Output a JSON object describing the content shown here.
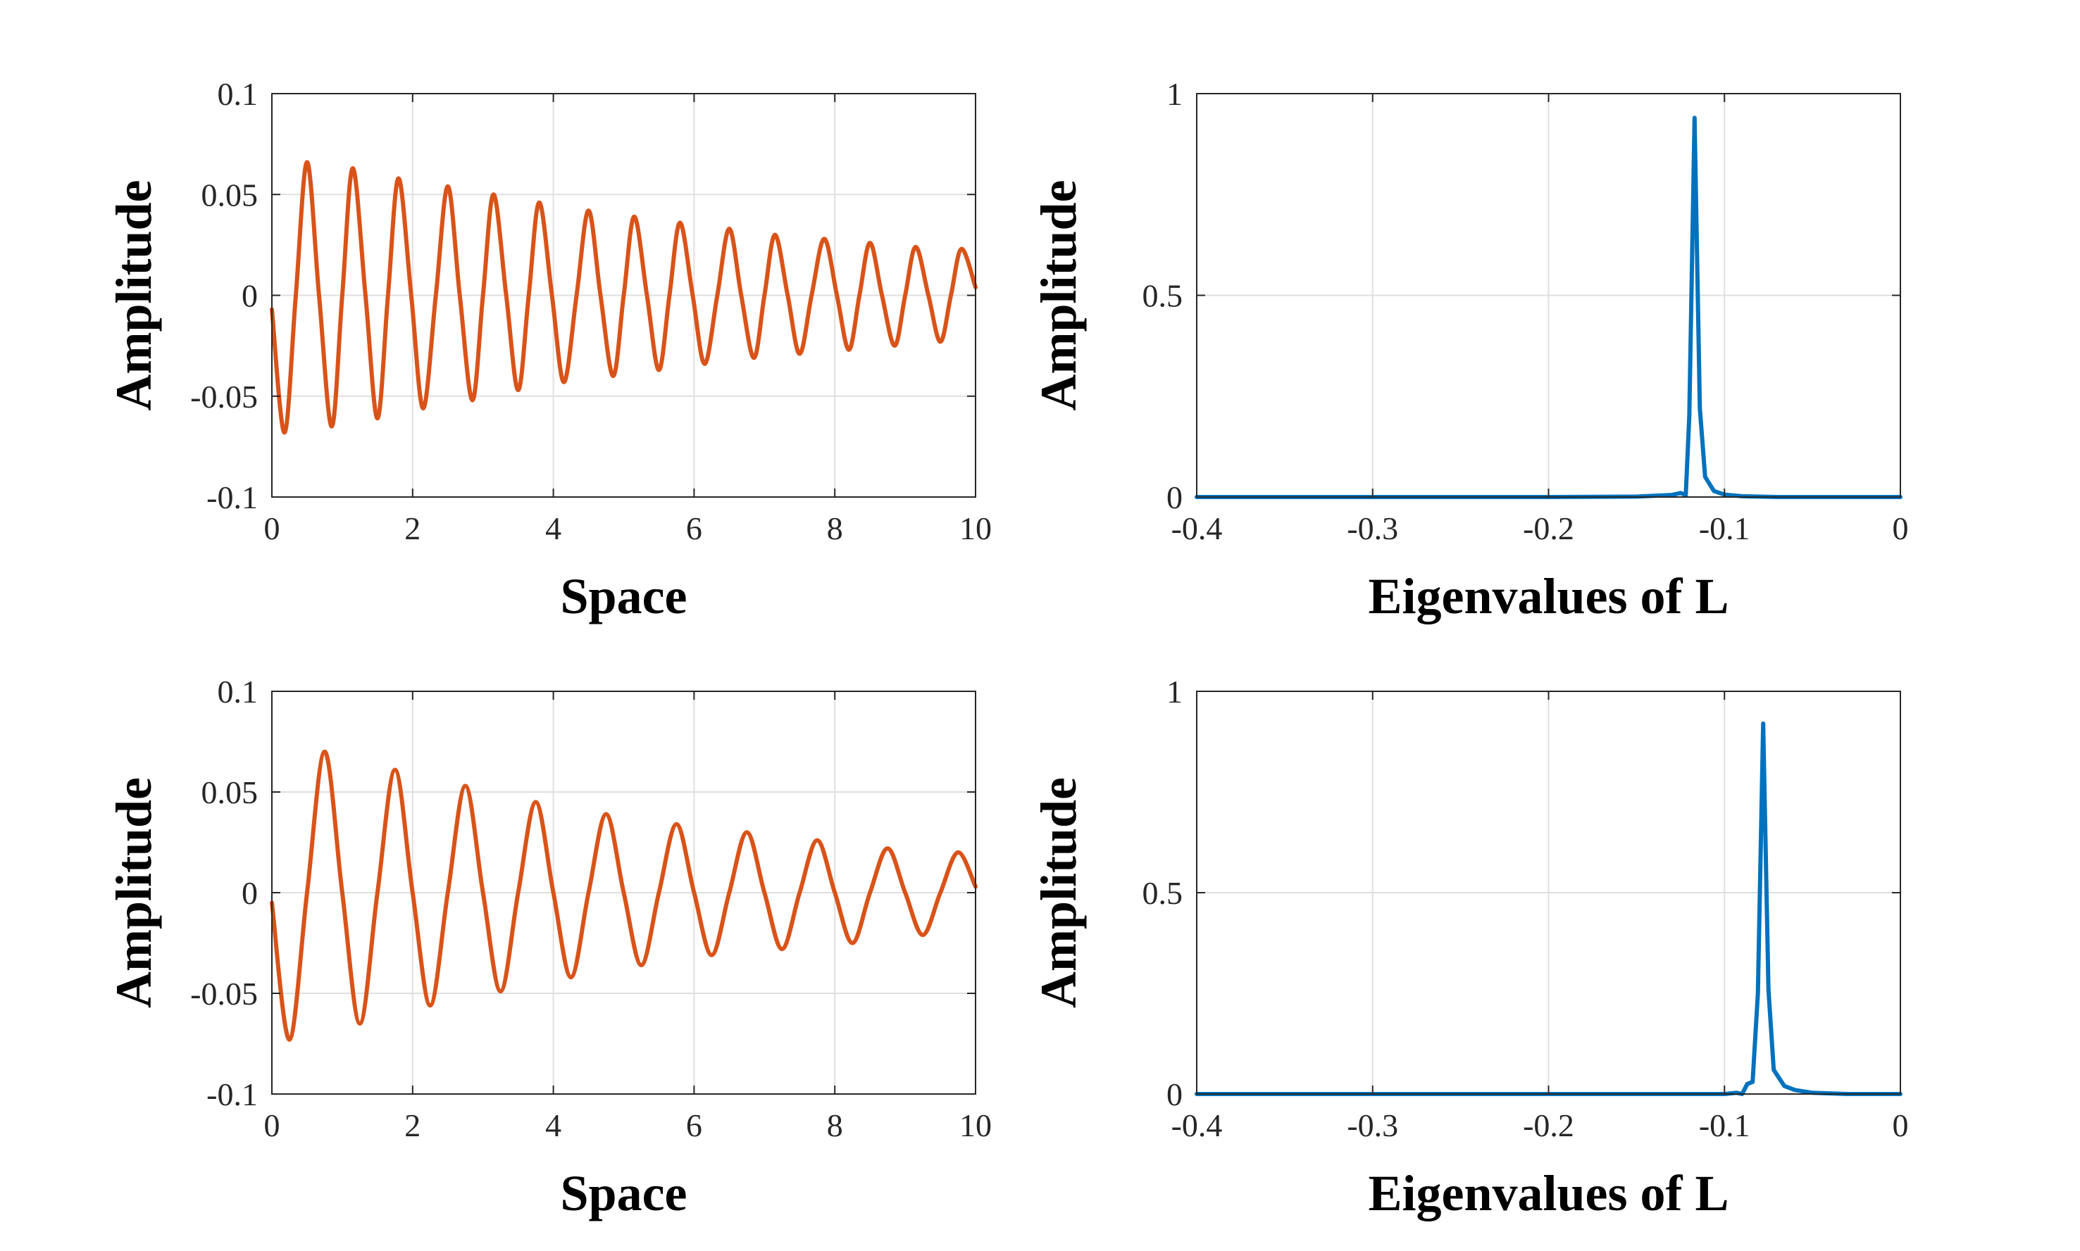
{
  "chart_data": [
    {
      "type": "line",
      "smooth": true,
      "grid": true,
      "color": "#d95319",
      "xlabel": "Space",
      "ylabel": "Amplitude",
      "xlim": [
        0,
        10
      ],
      "ylim": [
        -0.1,
        0.1
      ],
      "xticks": [
        0,
        2,
        4,
        6,
        8,
        10
      ],
      "yticks": [
        -0.1,
        -0.05,
        0,
        0.05,
        0.1
      ],
      "x": [
        0,
        0.18,
        0.34,
        0.5,
        0.67,
        0.85,
        1.0,
        1.15,
        1.33,
        1.5,
        1.65,
        1.8,
        1.98,
        2.15,
        2.33,
        2.5,
        2.67,
        2.85,
        3.0,
        3.15,
        3.33,
        3.5,
        3.65,
        3.8,
        3.98,
        4.15,
        4.33,
        4.5,
        4.67,
        4.85,
        5.0,
        5.15,
        5.33,
        5.5,
        5.65,
        5.8,
        5.98,
        6.15,
        6.33,
        6.5,
        6.67,
        6.85,
        7.0,
        7.15,
        7.33,
        7.5,
        7.67,
        7.85,
        8.03,
        8.2,
        8.35,
        8.5,
        8.67,
        8.85,
        9.0,
        9.15,
        9.33,
        9.5,
        9.65,
        9.8,
        10
      ],
      "values": [
        -0.007,
        -0.068,
        0,
        0.066,
        0,
        -0.065,
        0,
        0.063,
        0,
        -0.061,
        0,
        0.058,
        0,
        -0.056,
        0,
        0.054,
        0,
        -0.052,
        0,
        0.05,
        0,
        -0.047,
        0,
        0.046,
        0,
        -0.043,
        0,
        0.042,
        0,
        -0.04,
        0,
        0.039,
        0,
        -0.037,
        0,
        0.036,
        0,
        -0.034,
        0,
        0.033,
        0,
        -0.031,
        0,
        0.03,
        0,
        -0.029,
        0,
        0.028,
        0,
        -0.027,
        0,
        0.026,
        0,
        -0.025,
        0,
        0.024,
        0,
        -0.023,
        0,
        0.023,
        0.004
      ]
    },
    {
      "type": "line",
      "smooth": false,
      "grid": true,
      "color": "#0072bd",
      "xlabel": "Eigenvalues of L",
      "ylabel": "Amplitude",
      "xlim": [
        -0.4,
        0
      ],
      "ylim": [
        0,
        1
      ],
      "xticks": [
        -0.4,
        -0.3,
        -0.2,
        -0.1,
        0
      ],
      "yticks": [
        0,
        0.5,
        1
      ],
      "x": [
        -0.4,
        -0.2,
        -0.15,
        -0.13,
        -0.125,
        -0.122,
        -0.12,
        -0.117,
        -0.114,
        -0.111,
        -0.106,
        -0.1,
        -0.09,
        -0.07,
        0
      ],
      "values": [
        0,
        0,
        0.001,
        0.005,
        0.01,
        0.005,
        0.2,
        0.94,
        0.22,
        0.05,
        0.015,
        0.006,
        0.002,
        0,
        0
      ]
    },
    {
      "type": "line",
      "smooth": true,
      "grid": true,
      "color": "#d95319",
      "xlabel": "Space",
      "ylabel": "Amplitude",
      "xlim": [
        0,
        10
      ],
      "ylim": [
        -0.1,
        0.1
      ],
      "xticks": [
        0,
        2,
        4,
        6,
        8,
        10
      ],
      "yticks": [
        -0.1,
        -0.05,
        0,
        0.05,
        0.1
      ],
      "x": [
        0,
        0.25,
        0.5,
        0.75,
        1,
        1.25,
        1.5,
        1.75,
        2,
        2.25,
        2.5,
        2.75,
        3,
        3.25,
        3.5,
        3.75,
        4,
        4.25,
        4.5,
        4.75,
        5,
        5.25,
        5.5,
        5.75,
        6,
        6.25,
        6.5,
        6.75,
        7,
        7.25,
        7.5,
        7.75,
        8,
        8.25,
        8.5,
        8.75,
        9,
        9.25,
        9.5,
        9.75,
        10
      ],
      "values": [
        -0.005,
        -0.073,
        0,
        0.07,
        0,
        -0.065,
        0,
        0.061,
        0,
        -0.056,
        0,
        0.053,
        0,
        -0.049,
        0,
        0.045,
        0,
        -0.042,
        0,
        0.039,
        0,
        -0.036,
        0,
        0.034,
        0,
        -0.031,
        0,
        0.03,
        0,
        -0.028,
        0,
        0.026,
        0,
        -0.025,
        0,
        0.022,
        0,
        -0.021,
        0,
        0.02,
        0.003
      ]
    },
    {
      "type": "line",
      "smooth": false,
      "grid": true,
      "color": "#0072bd",
      "xlabel": "Eigenvalues of L",
      "ylabel": "Amplitude",
      "xlim": [
        -0.4,
        0
      ],
      "ylim": [
        0,
        1
      ],
      "xticks": [
        -0.4,
        -0.3,
        -0.2,
        -0.1,
        0
      ],
      "yticks": [
        0,
        0.5,
        1
      ],
      "x": [
        -0.4,
        -0.1,
        -0.093,
        -0.09,
        -0.087,
        -0.084,
        -0.081,
        -0.078,
        -0.075,
        -0.072,
        -0.066,
        -0.06,
        -0.05,
        -0.03,
        0
      ],
      "values": [
        0,
        0,
        0.003,
        0,
        0.025,
        0.03,
        0.25,
        0.92,
        0.26,
        0.06,
        0.02,
        0.01,
        0.003,
        0,
        0
      ]
    }
  ]
}
